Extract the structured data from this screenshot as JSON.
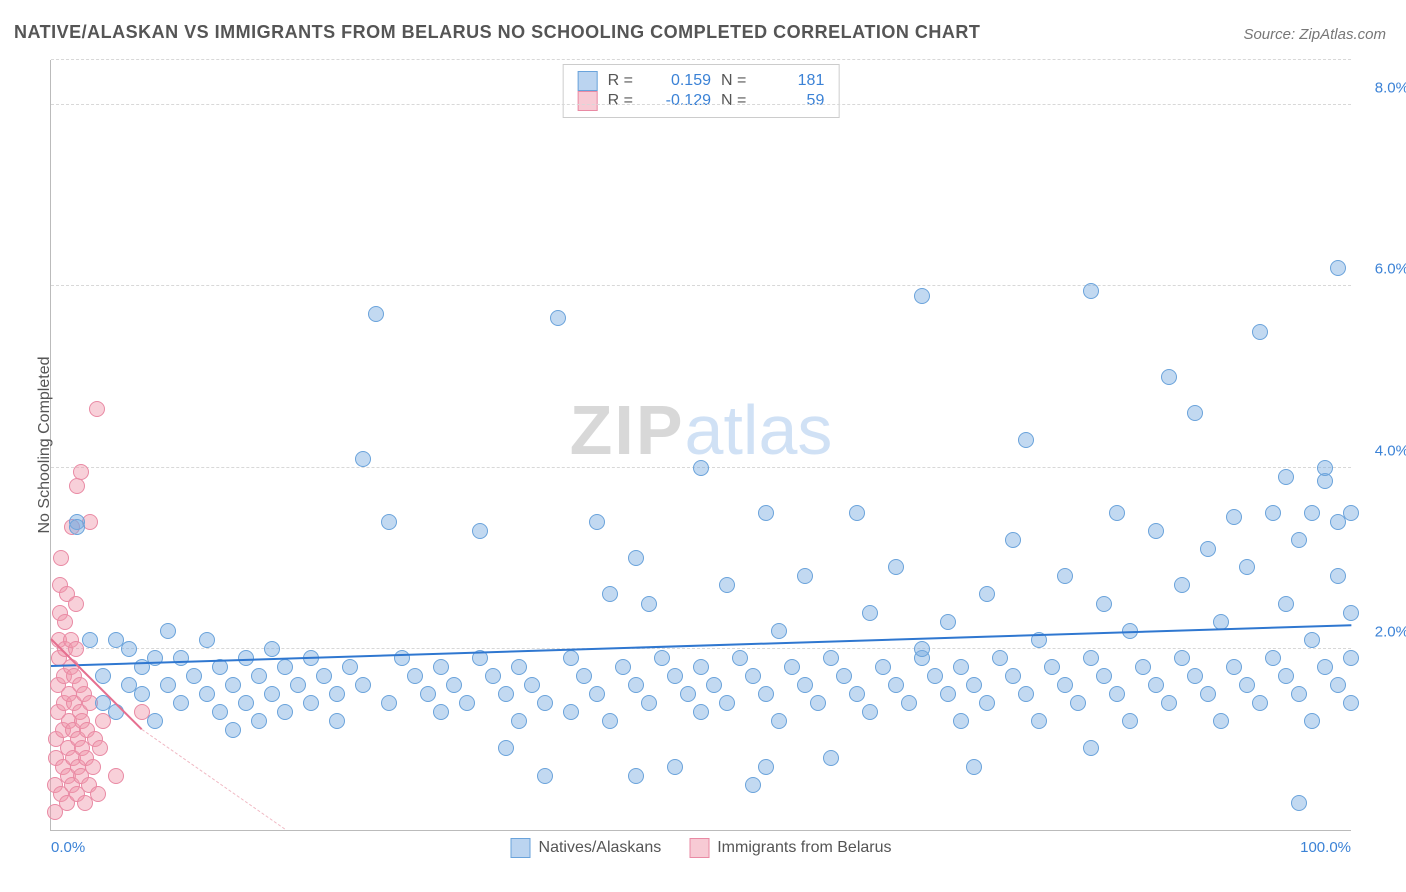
{
  "title": "NATIVE/ALASKAN VS IMMIGRANTS FROM BELARUS NO SCHOOLING COMPLETED CORRELATION CHART",
  "source": "Source: ZipAtlas.com",
  "ylabel": "No Schooling Completed",
  "watermark": {
    "part1": "ZIP",
    "part2": "atlas"
  },
  "chart": {
    "type": "scatter",
    "background_color": "#ffffff",
    "grid_color": "#d8d8d8",
    "axis_color": "#bbbbbb",
    "tick_color": "#3b82d6",
    "tick_fontsize": 15,
    "title_fontsize": 18,
    "xlim": [
      0,
      100
    ],
    "ylim": [
      0,
      8.5
    ],
    "ygrid": [
      2.0,
      4.0,
      6.0,
      8.0,
      8.5
    ],
    "yticks": [
      {
        "v": 2.0,
        "label": "2.0%"
      },
      {
        "v": 4.0,
        "label": "4.0%"
      },
      {
        "v": 6.0,
        "label": "6.0%"
      },
      {
        "v": 8.0,
        "label": "8.0%"
      }
    ],
    "xticks": [
      {
        "v": 0,
        "label": "0.0%"
      },
      {
        "v": 100,
        "label": "100.0%"
      }
    ],
    "marker_radius": 8,
    "marker_opacity": 0.45,
    "stats": [
      {
        "swatch": "blue",
        "r_label": "R =",
        "r": "0.159",
        "n_label": "N =",
        "n": "181"
      },
      {
        "swatch": "pink",
        "r_label": "R =",
        "r": "-0.129",
        "n_label": "N =",
        "n": "59"
      }
    ],
    "legend": [
      {
        "swatch": "blue",
        "label": "Natives/Alaskans"
      },
      {
        "swatch": "pink",
        "label": "Immigrants from Belarus"
      }
    ],
    "series": {
      "blue": {
        "color_fill": "rgba(120,170,225,0.45)",
        "color_stroke": "#6aa3db",
        "trend": {
          "x1": 0,
          "y1": 1.8,
          "x2": 100,
          "y2": 2.25,
          "color": "#2f77d0",
          "width": 2.5
        },
        "points": [
          [
            2,
            3.4
          ],
          [
            2,
            3.35
          ],
          [
            3,
            2.1
          ],
          [
            4,
            1.7
          ],
          [
            4,
            1.4
          ],
          [
            5,
            1.3
          ],
          [
            5,
            2.1
          ],
          [
            6,
            1.6
          ],
          [
            6,
            2.0
          ],
          [
            7,
            1.5
          ],
          [
            7,
            1.8
          ],
          [
            8,
            1.2
          ],
          [
            8,
            1.9
          ],
          [
            9,
            1.6
          ],
          [
            9,
            2.2
          ],
          [
            10,
            1.4
          ],
          [
            10,
            1.9
          ],
          [
            11,
            1.7
          ],
          [
            12,
            1.5
          ],
          [
            12,
            2.1
          ],
          [
            13,
            1.3
          ],
          [
            13,
            1.8
          ],
          [
            14,
            1.6
          ],
          [
            14,
            1.1
          ],
          [
            15,
            1.9
          ],
          [
            15,
            1.4
          ],
          [
            16,
            1.7
          ],
          [
            16,
            1.2
          ],
          [
            17,
            1.5
          ],
          [
            17,
            2.0
          ],
          [
            18,
            1.3
          ],
          [
            18,
            1.8
          ],
          [
            19,
            1.6
          ],
          [
            20,
            1.4
          ],
          [
            20,
            1.9
          ],
          [
            21,
            1.7
          ],
          [
            22,
            1.5
          ],
          [
            22,
            1.2
          ],
          [
            23,
            1.8
          ],
          [
            24,
            1.6
          ],
          [
            24,
            4.1
          ],
          [
            25,
            5.7
          ],
          [
            26,
            1.4
          ],
          [
            26,
            3.4
          ],
          [
            27,
            1.9
          ],
          [
            28,
            1.7
          ],
          [
            29,
            1.5
          ],
          [
            30,
            1.3
          ],
          [
            30,
            1.8
          ],
          [
            31,
            1.6
          ],
          [
            32,
            1.4
          ],
          [
            33,
            1.9
          ],
          [
            33,
            3.3
          ],
          [
            34,
            1.7
          ],
          [
            35,
            1.5
          ],
          [
            35,
            0.9
          ],
          [
            36,
            1.2
          ],
          [
            36,
            1.8
          ],
          [
            37,
            1.6
          ],
          [
            38,
            1.4
          ],
          [
            38,
            0.6
          ],
          [
            39,
            5.65
          ],
          [
            40,
            1.9
          ],
          [
            40,
            1.3
          ],
          [
            41,
            1.7
          ],
          [
            42,
            1.5
          ],
          [
            42,
            3.4
          ],
          [
            43,
            1.2
          ],
          [
            43,
            2.6
          ],
          [
            44,
            1.8
          ],
          [
            45,
            1.6
          ],
          [
            45,
            3.0
          ],
          [
            46,
            1.4
          ],
          [
            46,
            2.5
          ],
          [
            47,
            1.9
          ],
          [
            48,
            1.7
          ],
          [
            48,
            0.7
          ],
          [
            49,
            1.5
          ],
          [
            50,
            1.3
          ],
          [
            50,
            1.8
          ],
          [
            50,
            4.0
          ],
          [
            51,
            1.6
          ],
          [
            52,
            1.4
          ],
          [
            52,
            2.7
          ],
          [
            53,
            1.9
          ],
          [
            54,
            1.7
          ],
          [
            54,
            0.5
          ],
          [
            55,
            1.5
          ],
          [
            55,
            3.5
          ],
          [
            56,
            1.2
          ],
          [
            56,
            2.2
          ],
          [
            57,
            1.8
          ],
          [
            58,
            1.6
          ],
          [
            58,
            2.8
          ],
          [
            59,
            1.4
          ],
          [
            60,
            1.9
          ],
          [
            60,
            0.8
          ],
          [
            61,
            1.7
          ],
          [
            62,
            1.5
          ],
          [
            62,
            3.5
          ],
          [
            63,
            1.3
          ],
          [
            63,
            2.4
          ],
          [
            64,
            1.8
          ],
          [
            65,
            1.6
          ],
          [
            65,
            2.9
          ],
          [
            66,
            1.4
          ],
          [
            67,
            1.9
          ],
          [
            67,
            5.9
          ],
          [
            68,
            1.7
          ],
          [
            69,
            1.5
          ],
          [
            69,
            2.3
          ],
          [
            70,
            1.2
          ],
          [
            70,
            1.8
          ],
          [
            71,
            1.6
          ],
          [
            71,
            0.7
          ],
          [
            72,
            1.4
          ],
          [
            72,
            2.6
          ],
          [
            73,
            1.9
          ],
          [
            74,
            1.7
          ],
          [
            74,
            3.2
          ],
          [
            75,
            1.5
          ],
          [
            75,
            4.3
          ],
          [
            76,
            1.2
          ],
          [
            76,
            2.1
          ],
          [
            77,
            1.8
          ],
          [
            78,
            1.6
          ],
          [
            78,
            2.8
          ],
          [
            79,
            1.4
          ],
          [
            80,
            5.95
          ],
          [
            80,
            1.9
          ],
          [
            80,
            0.9
          ],
          [
            81,
            1.7
          ],
          [
            81,
            2.5
          ],
          [
            82,
            1.5
          ],
          [
            82,
            3.5
          ],
          [
            83,
            1.2
          ],
          [
            83,
            2.2
          ],
          [
            84,
            1.8
          ],
          [
            85,
            1.6
          ],
          [
            85,
            3.3
          ],
          [
            86,
            1.4
          ],
          [
            86,
            5.0
          ],
          [
            87,
            1.9
          ],
          [
            87,
            2.7
          ],
          [
            88,
            1.7
          ],
          [
            88,
            4.6
          ],
          [
            89,
            1.5
          ],
          [
            89,
            3.1
          ],
          [
            90,
            1.2
          ],
          [
            90,
            2.3
          ],
          [
            91,
            1.8
          ],
          [
            91,
            3.45
          ],
          [
            92,
            1.6
          ],
          [
            92,
            2.9
          ],
          [
            93,
            1.4
          ],
          [
            93,
            5.5
          ],
          [
            94,
            1.9
          ],
          [
            94,
            3.5
          ],
          [
            95,
            1.7
          ],
          [
            95,
            2.5
          ],
          [
            95,
            3.9
          ],
          [
            96,
            1.5
          ],
          [
            96,
            0.3
          ],
          [
            96,
            3.2
          ],
          [
            97,
            1.2
          ],
          [
            97,
            2.1
          ],
          [
            97,
            3.5
          ],
          [
            98,
            1.8
          ],
          [
            98,
            3.85
          ],
          [
            98,
            4.0
          ],
          [
            99,
            1.6
          ],
          [
            99,
            2.8
          ],
          [
            99,
            3.4
          ],
          [
            99,
            6.2
          ],
          [
            100,
            1.4
          ],
          [
            100,
            1.9
          ],
          [
            100,
            2.4
          ],
          [
            100,
            3.5
          ],
          [
            67,
            2.0
          ],
          [
            45,
            0.6
          ],
          [
            55,
            0.7
          ]
        ]
      },
      "pink": {
        "color_fill": "rgba(240,150,170,0.45)",
        "color_stroke": "#e98aa4",
        "trend_solid": {
          "x1": 0,
          "y1": 2.1,
          "x2": 7,
          "y2": 1.1,
          "color": "#e56f8f",
          "width": 2.5
        },
        "trend_dash": {
          "x1": 7,
          "y1": 1.1,
          "x2": 18,
          "y2": 0.0,
          "color": "#f0b8c3",
          "width": 1.5
        },
        "points": [
          [
            0.3,
            0.2
          ],
          [
            0.3,
            0.5
          ],
          [
            0.4,
            0.8
          ],
          [
            0.4,
            1.0
          ],
          [
            0.5,
            1.3
          ],
          [
            0.5,
            1.6
          ],
          [
            0.6,
            1.9
          ],
          [
            0.6,
            2.1
          ],
          [
            0.7,
            2.4
          ],
          [
            0.7,
            2.7
          ],
          [
            0.8,
            3.0
          ],
          [
            0.8,
            0.4
          ],
          [
            0.9,
            0.7
          ],
          [
            0.9,
            1.1
          ],
          [
            1.0,
            1.4
          ],
          [
            1.0,
            1.7
          ],
          [
            1.1,
            2.0
          ],
          [
            1.1,
            2.3
          ],
          [
            1.2,
            2.6
          ],
          [
            1.2,
            0.3
          ],
          [
            1.3,
            0.6
          ],
          [
            1.3,
            0.9
          ],
          [
            1.4,
            1.2
          ],
          [
            1.4,
            1.5
          ],
          [
            1.5,
            1.8
          ],
          [
            1.5,
            2.1
          ],
          [
            1.6,
            3.35
          ],
          [
            1.6,
            0.5
          ],
          [
            1.7,
            0.8
          ],
          [
            1.7,
            1.1
          ],
          [
            1.8,
            1.4
          ],
          [
            1.8,
            1.7
          ],
          [
            1.9,
            2.0
          ],
          [
            1.9,
            2.5
          ],
          [
            2.0,
            3.8
          ],
          [
            2.0,
            0.4
          ],
          [
            2.1,
            0.7
          ],
          [
            2.1,
            1.0
          ],
          [
            2.2,
            1.3
          ],
          [
            2.2,
            1.6
          ],
          [
            2.3,
            3.95
          ],
          [
            2.3,
            0.6
          ],
          [
            2.4,
            0.9
          ],
          [
            2.4,
            1.2
          ],
          [
            2.5,
            1.5
          ],
          [
            2.6,
            0.3
          ],
          [
            2.7,
            0.8
          ],
          [
            2.8,
            1.1
          ],
          [
            2.9,
            0.5
          ],
          [
            3.0,
            1.4
          ],
          [
            3.0,
            3.4
          ],
          [
            3.2,
            0.7
          ],
          [
            3.4,
            1.0
          ],
          [
            3.5,
            4.65
          ],
          [
            3.6,
            0.4
          ],
          [
            3.8,
            0.9
          ],
          [
            4.0,
            1.2
          ],
          [
            5.0,
            0.6
          ],
          [
            7.0,
            1.3
          ]
        ]
      }
    }
  }
}
